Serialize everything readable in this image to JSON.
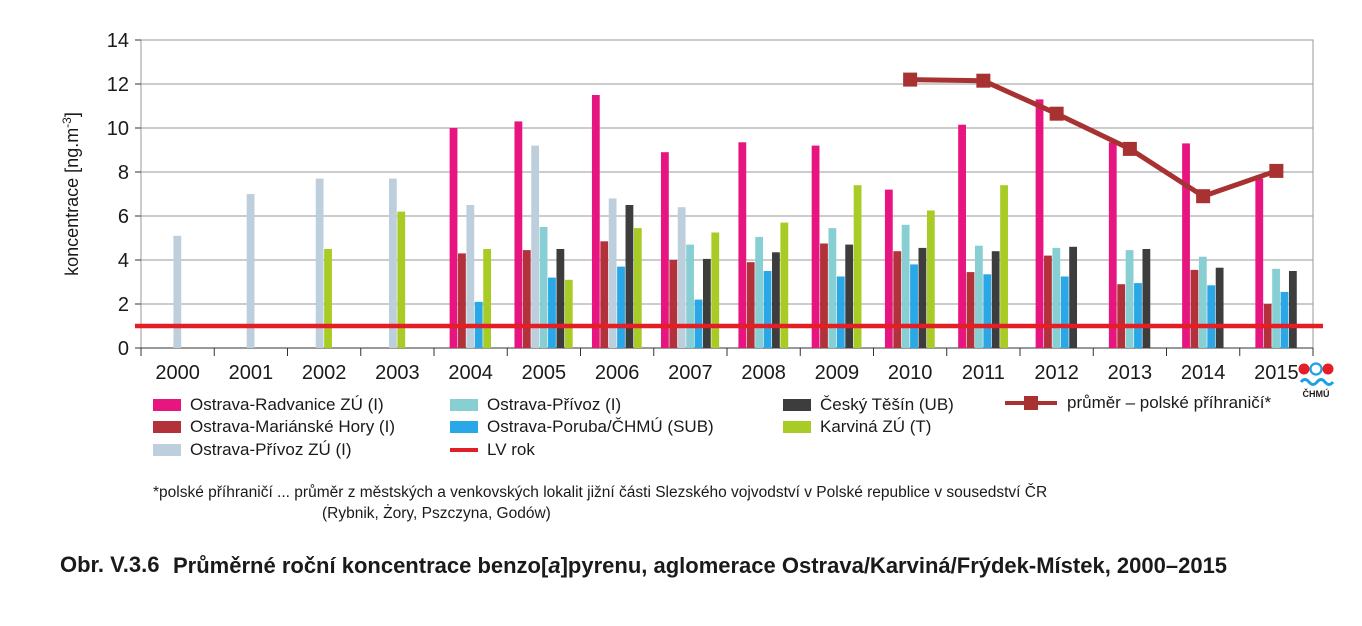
{
  "chart_data": {
    "type": "bar",
    "ylabel": "koncentrace [ng.m-3]",
    "ylim": [
      0,
      14
    ],
    "yticks": [
      0,
      2,
      4,
      6,
      8,
      10,
      12,
      14
    ],
    "grid": true,
    "legend_position": "bottom",
    "categories": [
      "2000",
      "2001",
      "2002",
      "2003",
      "2004",
      "2005",
      "2006",
      "2007",
      "2008",
      "2009",
      "2010",
      "2011",
      "2012",
      "2013",
      "2014",
      "2015"
    ],
    "series": [
      {
        "name": "Ostrava-Radvanice ZÚ (I)",
        "color": "#e6157f",
        "values": [
          null,
          null,
          null,
          null,
          10.0,
          10.3,
          11.5,
          8.9,
          9.35,
          9.2,
          7.2,
          10.15,
          11.3,
          9.35,
          9.3,
          7.7
        ]
      },
      {
        "name": "Ostrava-Mariánské Hory (I)",
        "color": "#b3313a",
        "values": [
          null,
          null,
          null,
          null,
          4.3,
          4.45,
          4.85,
          4.0,
          3.9,
          4.75,
          4.4,
          3.45,
          4.2,
          2.9,
          3.55,
          2.0
        ]
      },
      {
        "name": "Ostrava-Přívoz ZÚ (I)",
        "color": "#bdcedd",
        "values": [
          5.1,
          7.0,
          7.7,
          7.7,
          6.5,
          9.2,
          6.8,
          6.4,
          null,
          null,
          null,
          null,
          null,
          null,
          null,
          null
        ]
      },
      {
        "name": "Ostrava-Přívoz (I)",
        "color": "#88cfd4",
        "values": [
          null,
          null,
          null,
          null,
          null,
          5.5,
          null,
          4.7,
          5.05,
          5.45,
          5.6,
          4.65,
          4.55,
          4.45,
          4.15,
          3.6
        ]
      },
      {
        "name": "Ostrava-Poruba/ČHMÚ (SUB)",
        "color": "#2aa7e6",
        "values": [
          null,
          null,
          null,
          null,
          2.1,
          3.2,
          3.7,
          2.2,
          3.5,
          3.25,
          3.8,
          3.35,
          3.25,
          2.95,
          2.85,
          2.55
        ]
      },
      {
        "name": "Český Těšín (UB)",
        "color": "#3d3d3d",
        "values": [
          null,
          null,
          null,
          null,
          null,
          4.5,
          6.5,
          4.05,
          4.35,
          4.7,
          4.55,
          4.4,
          4.6,
          4.5,
          3.65,
          3.5
        ]
      },
      {
        "name": "Karviná ZÚ (T)",
        "color": "#a9cb26",
        "values": [
          null,
          null,
          4.5,
          6.2,
          4.5,
          3.1,
          5.45,
          5.25,
          5.7,
          7.4,
          6.25,
          7.4,
          null,
          null,
          null,
          null
        ]
      }
    ],
    "lines": [
      {
        "name": "LV rok",
        "color": "#e31e24",
        "value": 1
      },
      {
        "name": "průměr – polské příhraničí*",
        "color": "#a83232",
        "values": [
          null,
          null,
          null,
          null,
          null,
          null,
          null,
          null,
          null,
          null,
          12.2,
          12.15,
          10.65,
          9.05,
          6.9,
          8.05
        ]
      }
    ]
  },
  "footnote": {
    "line1": "*polské příhraničí ... průměr z městských a venkovských lokalit jižní části Slezského vojvodství v Polské republice v sousedství ČR",
    "line2": "(Rybnik, Żory, Pszczyna, Godów)"
  },
  "caption": {
    "label": "Obr. V.3.6",
    "title": "Průměrné roční koncentrace benzo[a]pyrenu, aglomerace Ostrava/Karviná/Frýdek-Místek, 2000–2015"
  },
  "logo": {
    "text": "ČHMÚ",
    "colors": [
      "#e31e24",
      "#1aa0e6"
    ]
  }
}
